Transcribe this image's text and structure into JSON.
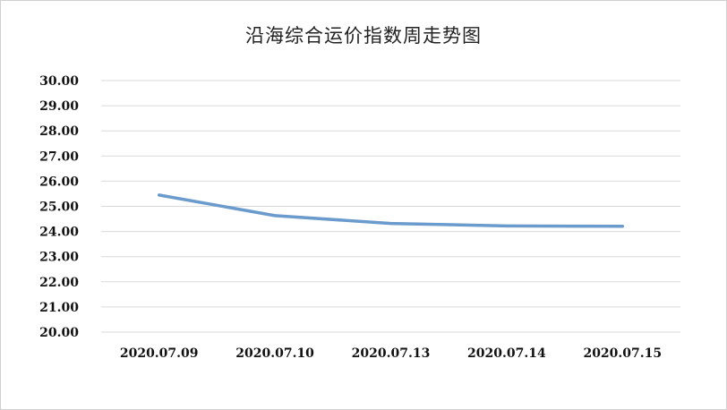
{
  "chart_data": {
    "type": "line",
    "title": "沿海综合运价指数周走势图",
    "categories": [
      "2020.07.09",
      "2020.07.10",
      "2020.07.13",
      "2020.07.14",
      "2020.07.15"
    ],
    "series": [
      {
        "values": [
          25.45,
          24.63,
          24.32,
          24.22,
          24.21
        ]
      }
    ],
    "ylim": [
      20,
      30
    ],
    "yticks": [
      "20.00",
      "21.00",
      "22.00",
      "23.00",
      "24.00",
      "25.00",
      "26.00",
      "27.00",
      "28.00",
      "29.00",
      "30.00"
    ],
    "grid": true,
    "legend": "none",
    "line_color": "#6a9bcc",
    "grid_color": "#d9d9d9"
  }
}
